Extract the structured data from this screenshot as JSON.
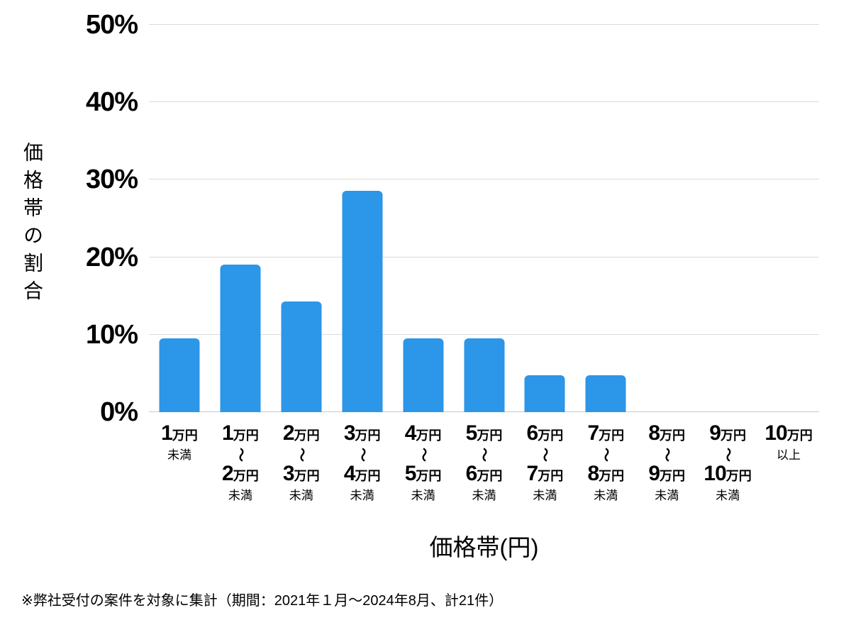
{
  "chart_data": {
    "type": "bar",
    "title": "",
    "xlabel": "価格帯(円)",
    "ylabel": "価格帯の割合",
    "ylim": [
      0,
      50
    ],
    "grid": true,
    "legend_position": "none",
    "bar_color": "#2c96e9",
    "gridline_color": "#dadada",
    "yticks": [
      {
        "value": 0,
        "label": "0%"
      },
      {
        "value": 10,
        "label": "10%"
      },
      {
        "value": 20,
        "label": "20%"
      },
      {
        "value": 30,
        "label": "30%"
      },
      {
        "value": 40,
        "label": "40%"
      },
      {
        "value": 50,
        "label": "50%"
      }
    ],
    "categories": [
      {
        "id": "under-1man",
        "rows": [
          {
            "kind": "value",
            "number": "1",
            "unit": "万円"
          },
          {
            "kind": "note",
            "text": "未満"
          }
        ]
      },
      {
        "id": "1man-2man",
        "rows": [
          {
            "kind": "value",
            "number": "1",
            "unit": "万円"
          },
          {
            "kind": "tilde",
            "text": "〜"
          },
          {
            "kind": "value",
            "number": "2",
            "unit": "万円"
          },
          {
            "kind": "note",
            "text": "未満"
          }
        ]
      },
      {
        "id": "2man-3man",
        "rows": [
          {
            "kind": "value",
            "number": "2",
            "unit": "万円"
          },
          {
            "kind": "tilde",
            "text": "〜"
          },
          {
            "kind": "value",
            "number": "3",
            "unit": "万円"
          },
          {
            "kind": "note",
            "text": "未満"
          }
        ]
      },
      {
        "id": "3man-4man",
        "rows": [
          {
            "kind": "value",
            "number": "3",
            "unit": "万円"
          },
          {
            "kind": "tilde",
            "text": "〜"
          },
          {
            "kind": "value",
            "number": "4",
            "unit": "万円"
          },
          {
            "kind": "note",
            "text": "未満"
          }
        ]
      },
      {
        "id": "4man-5man",
        "rows": [
          {
            "kind": "value",
            "number": "4",
            "unit": "万円"
          },
          {
            "kind": "tilde",
            "text": "〜"
          },
          {
            "kind": "value",
            "number": "5",
            "unit": "万円"
          },
          {
            "kind": "note",
            "text": "未満"
          }
        ]
      },
      {
        "id": "5man-6man",
        "rows": [
          {
            "kind": "value",
            "number": "5",
            "unit": "万円"
          },
          {
            "kind": "tilde",
            "text": "〜"
          },
          {
            "kind": "value",
            "number": "6",
            "unit": "万円"
          },
          {
            "kind": "note",
            "text": "未満"
          }
        ]
      },
      {
        "id": "6man-7man",
        "rows": [
          {
            "kind": "value",
            "number": "6",
            "unit": "万円"
          },
          {
            "kind": "tilde",
            "text": "〜"
          },
          {
            "kind": "value",
            "number": "7",
            "unit": "万円"
          },
          {
            "kind": "note",
            "text": "未満"
          }
        ]
      },
      {
        "id": "7man-8man",
        "rows": [
          {
            "kind": "value",
            "number": "7",
            "unit": "万円"
          },
          {
            "kind": "tilde",
            "text": "〜"
          },
          {
            "kind": "value",
            "number": "8",
            "unit": "万円"
          },
          {
            "kind": "note",
            "text": "未満"
          }
        ]
      },
      {
        "id": "8man-9man",
        "rows": [
          {
            "kind": "value",
            "number": "8",
            "unit": "万円"
          },
          {
            "kind": "tilde",
            "text": "〜"
          },
          {
            "kind": "value",
            "number": "9",
            "unit": "万円"
          },
          {
            "kind": "note",
            "text": "未満"
          }
        ]
      },
      {
        "id": "9man-10man",
        "rows": [
          {
            "kind": "value",
            "number": "9",
            "unit": "万円"
          },
          {
            "kind": "tilde",
            "text": "〜"
          },
          {
            "kind": "value",
            "number": "10",
            "unit": "万円"
          },
          {
            "kind": "note",
            "text": "未満"
          }
        ]
      },
      {
        "id": "over-10man",
        "rows": [
          {
            "kind": "value",
            "number": "10",
            "unit": "万円"
          },
          {
            "kind": "note",
            "text": "以上"
          }
        ]
      }
    ],
    "values": [
      9.52,
      19.05,
      14.29,
      28.57,
      9.52,
      9.52,
      4.76,
      4.76,
      0,
      0,
      0
    ]
  },
  "footnote": "※弊社受付の案件を対象に集計（期間：2021年１月～2024年8月、計21件）"
}
